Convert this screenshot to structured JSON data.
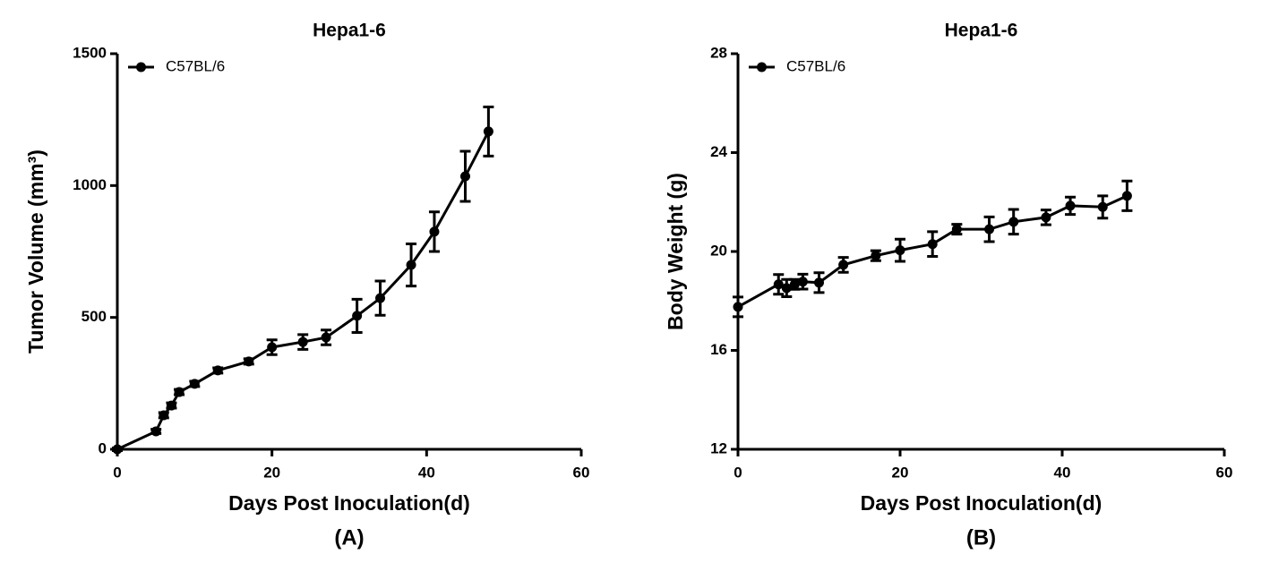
{
  "chart_data": [
    {
      "type": "line",
      "title": "Hepa1-6",
      "xlabel": "Days Post Inoculation(d)",
      "ylabel": "Tumor Volume (mm³)",
      "caption": "(A)",
      "x": [
        0,
        5,
        6,
        7,
        8,
        10,
        13,
        17,
        20,
        24,
        27,
        31,
        34,
        38,
        41,
        45,
        48
      ],
      "series": [
        {
          "name": "C57BL/6",
          "color": "#000000",
          "values": [
            0,
            68,
            129,
            166,
            217,
            248,
            299,
            333,
            387,
            407,
            424,
            506,
            573,
            699,
            825,
            1035,
            1205
          ],
          "errors": [
            5,
            8,
            10,
            10,
            10,
            10,
            10,
            10,
            28,
            28,
            28,
            63,
            65,
            80,
            75,
            95,
            93
          ]
        }
      ],
      "xlim": [
        0,
        60
      ],
      "ylim": [
        0,
        1500
      ],
      "xticks": [
        0,
        20,
        40,
        60
      ],
      "yticks": [
        0,
        500,
        1000,
        1500
      ],
      "legend": "upper left"
    },
    {
      "type": "line",
      "title": "Hepa1-6",
      "xlabel": "Days Post Inoculation(d)",
      "ylabel": "Body Weight (g)",
      "caption": "(B)",
      "x": [
        0,
        5,
        6,
        7,
        8,
        10,
        13,
        17,
        20,
        24,
        27,
        31,
        34,
        38,
        41,
        45,
        48
      ],
      "series": [
        {
          "name": "C57BL/6",
          "color": "#000000",
          "values": [
            17.76,
            18.67,
            18.52,
            18.67,
            18.78,
            18.74,
            19.46,
            19.83,
            20.05,
            20.3,
            20.9,
            20.9,
            21.2,
            21.38,
            21.85,
            21.8,
            22.25
          ],
          "errors": [
            0.4,
            0.4,
            0.35,
            0.2,
            0.3,
            0.4,
            0.3,
            0.2,
            0.45,
            0.5,
            0.2,
            0.5,
            0.5,
            0.3,
            0.35,
            0.45,
            0.6
          ]
        }
      ],
      "xlim": [
        0,
        60
      ],
      "ylim": [
        12,
        28
      ],
      "xticks": [
        0,
        20,
        40,
        60
      ],
      "yticks": [
        12,
        16,
        20,
        24,
        28
      ],
      "legend": "upper left"
    }
  ]
}
